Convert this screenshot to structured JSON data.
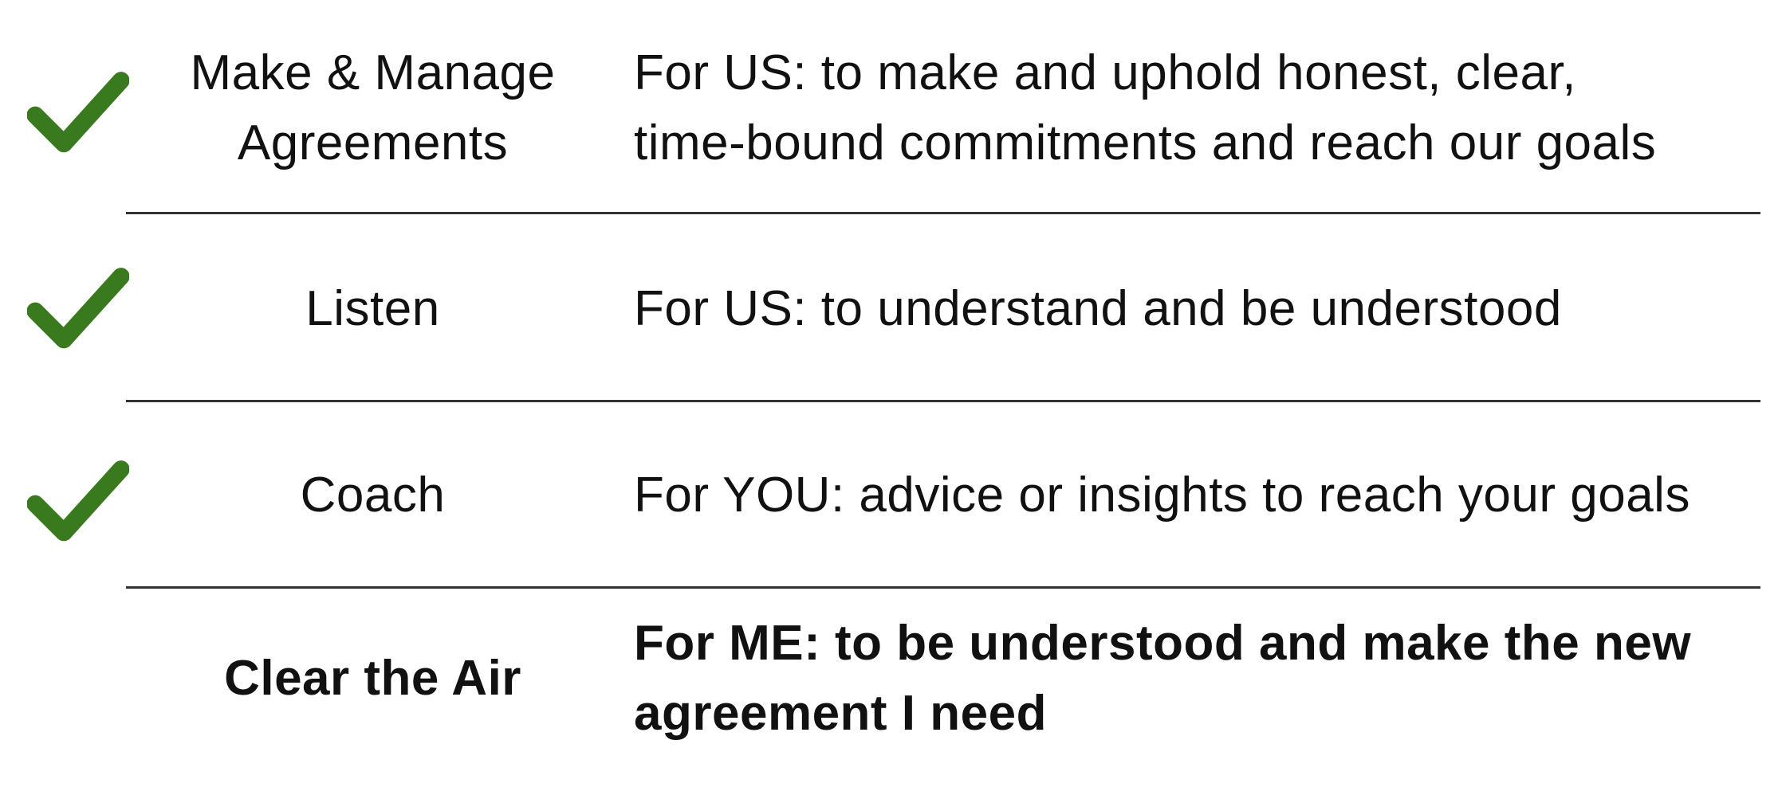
{
  "accent_color": "#3a7a1e",
  "rows": [
    {
      "checked": true,
      "icon": "checkmark-icon",
      "label_lines": [
        "Make & Manage",
        "Agreements"
      ],
      "desc_lines": [
        "For US: to make and uphold honest, clear,",
        "time-bound commitments and reach our goals"
      ]
    },
    {
      "checked": true,
      "icon": "checkmark-icon",
      "label_lines": [
        "Listen"
      ],
      "desc_lines": [
        "For US: to understand and be understood"
      ]
    },
    {
      "checked": true,
      "icon": "checkmark-icon",
      "label_lines": [
        "Coach"
      ],
      "desc_lines": [
        "For YOU: advice or insights to reach your goals"
      ]
    },
    {
      "checked": false,
      "label_lines": [
        "Clear the Air"
      ],
      "desc_lines": [
        "For ME: to be understood and make the new",
        "agreement I need"
      ]
    }
  ]
}
